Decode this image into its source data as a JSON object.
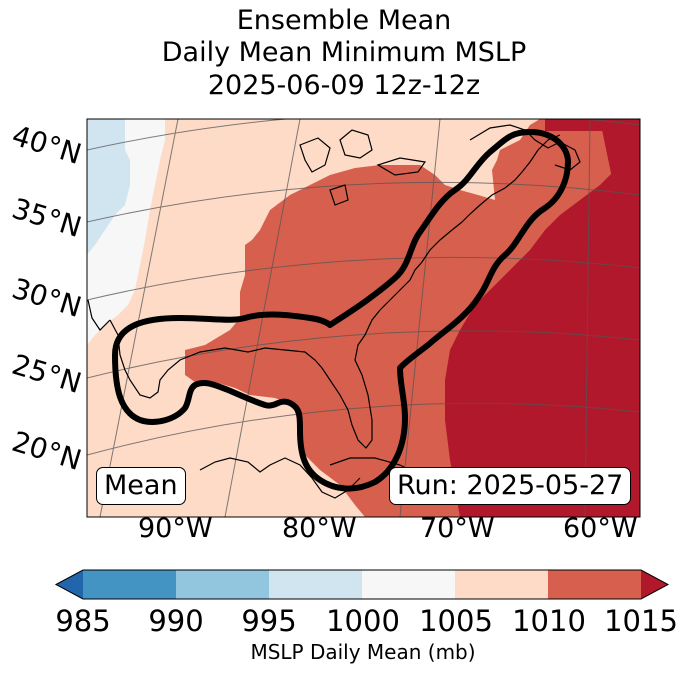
{
  "title": {
    "line1": "Ensemble Mean",
    "line2": "Daily Mean Minimum MSLP",
    "line3": "2025-06-09 12z-12z"
  },
  "map": {
    "lat_labels": [
      "40°N",
      "35°N",
      "30°N",
      "25°N",
      "20°N"
    ],
    "lon_labels": [
      "90°W",
      "80°W",
      "70°W",
      "60°W"
    ],
    "mean_badge": "Mean",
    "run_badge": "Run: 2025-05-27",
    "pressure_regions": [
      {
        "name": "995-1000",
        "color": "#d1e5f0"
      },
      {
        "name": "1000-1005",
        "color": "#f7f7f7"
      },
      {
        "name": "1005-1010",
        "color": "#fddbc7"
      },
      {
        "name": "1010-1015",
        "color": "#d6604d"
      },
      {
        "name": "above-1015",
        "color": "#b2182b"
      }
    ]
  },
  "colorbar": {
    "ticks": [
      "985",
      "990",
      "995",
      "1000",
      "1005",
      "1010",
      "1015"
    ],
    "colors": [
      "#2166ac",
      "#4393c3",
      "#92c5de",
      "#d1e5f0",
      "#f7f7f7",
      "#fddbc7",
      "#d6604d",
      "#b2182b"
    ],
    "label": "MSLP Daily Mean (mb)"
  }
}
